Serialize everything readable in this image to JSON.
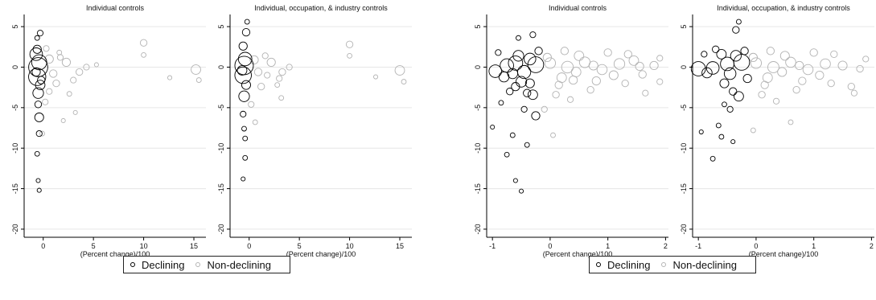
{
  "chart_data": [
    {
      "type": "scatter",
      "title": "Individual controls",
      "xlabel": "(Percent change)/100",
      "ylabel": "",
      "xlim": [
        -1.9,
        16.2
      ],
      "ylim": [
        -21,
        6.5
      ],
      "xticks": [
        0,
        5,
        10,
        15
      ],
      "yticks": [
        5,
        0,
        -5,
        -10,
        -15,
        -20
      ],
      "grid": true,
      "series": [
        {
          "name": "Declining",
          "color": "#000000",
          "points": [
            [
              -0.5,
              0,
              32
            ],
            [
              -0.6,
              -1.2,
              26
            ],
            [
              -0.4,
              0.6,
              20
            ],
            [
              -0.5,
              -3.2,
              10
            ],
            [
              -0.4,
              -6.2,
              7
            ],
            [
              -0.7,
              1.6,
              14
            ],
            [
              -0.3,
              -2.2,
              8
            ],
            [
              -0.6,
              2.2,
              6
            ],
            [
              -0.5,
              -4.6,
              4
            ],
            [
              -0.4,
              -8.2,
              3
            ],
            [
              -0.6,
              -10.7,
              2
            ],
            [
              -0.4,
              -15.2,
              1.5
            ],
            [
              -0.5,
              -14,
              1.5
            ],
            [
              -0.3,
              4.2,
              3
            ],
            [
              -0.6,
              3.6,
              2
            ],
            [
              -0.2,
              -1.6,
              5
            ],
            [
              -0.7,
              -0.6,
              6
            ]
          ]
        },
        {
          "name": "Non-declining",
          "color": "#b3b3b3",
          "points": [
            [
              10,
              3,
              4
            ],
            [
              10,
              1.5,
              2
            ],
            [
              15.2,
              -0.3,
              8
            ],
            [
              15.5,
              -1.6,
              2
            ],
            [
              12.6,
              -1.3,
              1.5
            ],
            [
              4.3,
              0,
              3
            ],
            [
              3.6,
              -0.6,
              4
            ],
            [
              2.3,
              0.6,
              6
            ],
            [
              1.7,
              1.2,
              3
            ],
            [
              3,
              -1.6,
              3
            ],
            [
              2.6,
              -3.3,
              2
            ],
            [
              3.2,
              -5.6,
              1.5
            ],
            [
              1.3,
              -2,
              4
            ],
            [
              0.6,
              1,
              6
            ],
            [
              1,
              -0.8,
              5
            ],
            [
              0.3,
              2.3,
              3
            ],
            [
              -0.1,
              -8.2,
              2
            ],
            [
              0.2,
              -4.3,
              3
            ],
            [
              0.6,
              -3,
              3
            ],
            [
              2,
              -6.6,
              1.5
            ],
            [
              1.6,
              1.8,
              2
            ],
            [
              5.3,
              0.3,
              1.5
            ]
          ]
        }
      ]
    },
    {
      "type": "scatter",
      "title": "Individual, occupation, & industry controls",
      "xlabel": "(Percent change)/100",
      "ylabel": "",
      "xlim": [
        -1.9,
        16.2
      ],
      "ylim": [
        -21,
        6.5
      ],
      "xticks": [
        0,
        5,
        10,
        15
      ],
      "yticks": [
        5,
        0,
        -5,
        -10,
        -15,
        -20
      ],
      "grid": true,
      "series": [
        {
          "name": "Declining",
          "color": "#000000",
          "points": [
            [
              -0.5,
              0.2,
              30
            ],
            [
              -0.6,
              -1,
              24
            ],
            [
              -0.4,
              1,
              16
            ],
            [
              -0.5,
              -3.6,
              10
            ],
            [
              -0.3,
              4.3,
              5
            ],
            [
              -0.6,
              -5.8,
              3
            ],
            [
              -0.5,
              -7.6,
              2
            ],
            [
              -0.4,
              -11.2,
              2
            ],
            [
              -0.6,
              -13.8,
              1.5
            ],
            [
              -0.3,
              -2.2,
              7
            ],
            [
              -0.6,
              2.6,
              6
            ],
            [
              -0.4,
              -8.8,
              2
            ],
            [
              -0.7,
              -0.4,
              8
            ],
            [
              -0.2,
              5.6,
              2
            ]
          ]
        },
        {
          "name": "Non-declining",
          "color": "#b3b3b3",
          "points": [
            [
              10,
              2.8,
              4
            ],
            [
              10,
              1.4,
              2
            ],
            [
              15,
              -0.4,
              8
            ],
            [
              15.4,
              -1.8,
              2
            ],
            [
              12.6,
              -1.2,
              1.5
            ],
            [
              4,
              0,
              3
            ],
            [
              3.3,
              -0.6,
              4
            ],
            [
              2.2,
              0.6,
              6
            ],
            [
              1.6,
              1.4,
              3
            ],
            [
              3,
              -1.4,
              3
            ],
            [
              2.8,
              -2.2,
              2
            ],
            [
              1.2,
              -2.4,
              4
            ],
            [
              0.5,
              0.9,
              6
            ],
            [
              0.9,
              -0.6,
              5
            ],
            [
              0.6,
              -6.8,
              2
            ],
            [
              0.2,
              -4.6,
              3
            ],
            [
              3.2,
              -3.8,
              2
            ],
            [
              1.8,
              -1,
              3
            ]
          ]
        }
      ]
    },
    {
      "type": "scatter",
      "title": "Individual controls",
      "xlabel": "(Percent change)/100",
      "ylabel": "",
      "xlim": [
        -1.1,
        2.05
      ],
      "ylim": [
        -21,
        6.5
      ],
      "xticks": [
        -1,
        0,
        1,
        2
      ],
      "yticks": [
        5,
        0,
        -5,
        -10,
        -15,
        -20
      ],
      "grid": true,
      "series": [
        {
          "name": "Declining",
          "color": "#000000",
          "points": [
            [
              -0.25,
              0.3,
              22
            ],
            [
              -0.6,
              0.5,
              18
            ],
            [
              -0.95,
              -0.5,
              14
            ],
            [
              -0.75,
              0.2,
              16
            ],
            [
              -0.45,
              -0.6,
              15
            ],
            [
              -0.35,
              1,
              12
            ],
            [
              -0.5,
              -1.8,
              10
            ],
            [
              -0.8,
              -1.2,
              9
            ],
            [
              -0.3,
              -3.4,
              8
            ],
            [
              -0.25,
              -6,
              6
            ],
            [
              -0.4,
              -3.2,
              5
            ],
            [
              -0.6,
              -2.4,
              6
            ],
            [
              -0.55,
              1.4,
              10
            ],
            [
              -0.7,
              -3,
              4
            ],
            [
              -0.45,
              -5.2,
              3
            ],
            [
              -0.65,
              -8.4,
              2
            ],
            [
              -0.75,
              -10.8,
              2
            ],
            [
              -0.6,
              -14,
              1.5
            ],
            [
              -0.5,
              -15.3,
              1.5
            ],
            [
              -0.3,
              4,
              3
            ],
            [
              -0.55,
              3.6,
              2
            ],
            [
              -0.4,
              -9.6,
              2
            ],
            [
              -0.85,
              -4.4,
              2
            ],
            [
              -0.2,
              2,
              5
            ],
            [
              -1,
              -7.4,
              1.5
            ],
            [
              -0.35,
              -2,
              7
            ],
            [
              -0.65,
              -0.8,
              9
            ],
            [
              -0.9,
              1.8,
              3
            ]
          ]
        },
        {
          "name": "Non-declining",
          "color": "#b3b3b3",
          "points": [
            [
              0,
              0.5,
              10
            ],
            [
              0.3,
              0,
              12
            ],
            [
              0.6,
              0.6,
              10
            ],
            [
              0.9,
              -0.3,
              9
            ],
            [
              1.2,
              0.4,
              10
            ],
            [
              1.45,
              0.8,
              8
            ],
            [
              1.8,
              0.2,
              6
            ],
            [
              1.9,
              1.1,
              3
            ],
            [
              1.6,
              -0.9,
              5
            ],
            [
              0.2,
              -1.3,
              8
            ],
            [
              0.5,
              1.4,
              8
            ],
            [
              0.8,
              -1.7,
              6
            ],
            [
              1.1,
              -1,
              7
            ],
            [
              1.35,
              1.6,
              5
            ],
            [
              0.1,
              -3.4,
              4
            ],
            [
              0.35,
              -4,
              3
            ],
            [
              0.7,
              -2.8,
              4
            ],
            [
              1.65,
              -3.2,
              3
            ],
            [
              1.9,
              -1.8,
              3
            ],
            [
              -0.1,
              -5.2,
              3
            ],
            [
              0.15,
              -2.2,
              5
            ],
            [
              0.45,
              -0.6,
              8
            ],
            [
              1,
              1.8,
              5
            ],
            [
              1.3,
              -2,
              4
            ],
            [
              0.05,
              -8.4,
              2
            ],
            [
              0.25,
              2,
              5
            ],
            [
              0.75,
              0.2,
              7
            ],
            [
              1.55,
              0.1,
              6
            ],
            [
              -0.05,
              1.2,
              6
            ],
            [
              0.4,
              -1.6,
              6
            ]
          ]
        }
      ]
    },
    {
      "type": "scatter",
      "title": "Individual, occupation, & industry controls",
      "xlabel": "(Percent change)/100",
      "ylabel": "",
      "xlim": [
        -1.1,
        2.05
      ],
      "ylim": [
        -21,
        6.5
      ],
      "xticks": [
        -1,
        0,
        1,
        2
      ],
      "yticks": [
        5,
        0,
        -5,
        -10,
        -15,
        -20
      ],
      "grid": true,
      "series": [
        {
          "name": "Declining",
          "color": "#000000",
          "points": [
            [
              -0.25,
              0.6,
              22
            ],
            [
              -0.5,
              0.4,
              16
            ],
            [
              -1,
              -0.2,
              18
            ],
            [
              -0.75,
              -0.1,
              14
            ],
            [
              -0.45,
              -0.8,
              12
            ],
            [
              -0.35,
              1.4,
              10
            ],
            [
              -0.3,
              -3.6,
              8
            ],
            [
              -0.55,
              -2,
              7
            ],
            [
              -0.6,
              1.6,
              8
            ],
            [
              -0.85,
              -0.7,
              9
            ],
            [
              -0.4,
              -3,
              5
            ],
            [
              -0.35,
              4.6,
              4
            ],
            [
              -0.3,
              5.6,
              2
            ],
            [
              -0.65,
              -7.2,
              2
            ],
            [
              -0.75,
              -11.3,
              2
            ],
            [
              -0.6,
              -8.6,
              2
            ],
            [
              -0.95,
              -8,
              1.5
            ],
            [
              -0.45,
              -5.2,
              3
            ],
            [
              -0.2,
              2,
              5
            ],
            [
              -0.7,
              2.2,
              4
            ],
            [
              -0.55,
              -4.6,
              2
            ],
            [
              -0.4,
              -9.2,
              1.5
            ],
            [
              -0.15,
              -1.4,
              6
            ],
            [
              -0.9,
              1.6,
              3
            ]
          ]
        },
        {
          "name": "Non-declining",
          "color": "#b3b3b3",
          "points": [
            [
              0,
              0.5,
              10
            ],
            [
              0.3,
              0,
              11
            ],
            [
              0.6,
              0.6,
              9
            ],
            [
              0.9,
              -0.3,
              9
            ],
            [
              1.2,
              0.4,
              9
            ],
            [
              1.5,
              0.2,
              7
            ],
            [
              1.8,
              -0.2,
              4
            ],
            [
              1.65,
              -2.4,
              4
            ],
            [
              1.7,
              -3.2,
              3
            ],
            [
              0.2,
              -1.3,
              8
            ],
            [
              0.5,
              1.4,
              7
            ],
            [
              0.8,
              -1.7,
              5
            ],
            [
              1.1,
              -1,
              6
            ],
            [
              1.35,
              1.6,
              4
            ],
            [
              0.1,
              -3.4,
              4
            ],
            [
              0.35,
              -4.2,
              3
            ],
            [
              0.6,
              -6.8,
              2
            ],
            [
              0.7,
              -2.8,
              4
            ],
            [
              1.9,
              1,
              3
            ],
            [
              0.15,
              -2.2,
              5
            ],
            [
              0.45,
              -0.6,
              7
            ],
            [
              1,
              1.8,
              5
            ],
            [
              1.3,
              -2,
              4
            ],
            [
              -0.05,
              -7.8,
              2
            ],
            [
              0.25,
              2,
              5
            ],
            [
              0.75,
              0.2,
              6
            ],
            [
              -0.05,
              1.2,
              6
            ]
          ]
        }
      ]
    }
  ],
  "legends": [
    {
      "items": [
        {
          "label": "Declining",
          "color": "#000000"
        },
        {
          "label": "Non-declining",
          "color": "#b3b3b3"
        }
      ]
    },
    {
      "items": [
        {
          "label": "Declining",
          "color": "#000000"
        },
        {
          "label": "Non-declining",
          "color": "#b3b3b3"
        }
      ]
    }
  ]
}
